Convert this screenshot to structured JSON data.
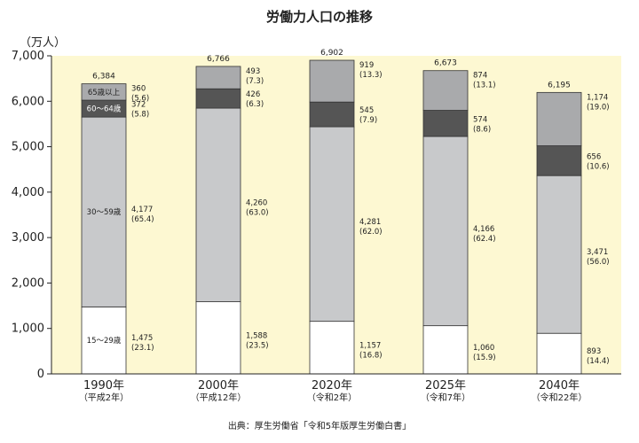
{
  "chart_data": {
    "type": "bar",
    "stacked": true,
    "title": "労働力人口の推移",
    "ylabel": "（万人）",
    "ylim": [
      0,
      7000
    ],
    "yticks": [
      "0",
      "1,000",
      "2,000",
      "3,000",
      "4,000",
      "5,000",
      "6,000",
      "7,000"
    ],
    "grid": false,
    "background": "#fdf8d2",
    "categories": [
      {
        "year": "1990年",
        "era": "（平成2年）"
      },
      {
        "year": "2000年",
        "era": "（平成12年）"
      },
      {
        "year": "2020年",
        "era": "（令和2年）"
      },
      {
        "year": "2025年",
        "era": "（令和7年）"
      },
      {
        "year": "2040年",
        "era": "（令和22年）"
      }
    ],
    "totals": [
      "6,384",
      "6,766",
      "6,902",
      "6,673",
      "6,195"
    ],
    "series": [
      {
        "name": "15～29歳",
        "color": "#ffffff",
        "values": [
          1475,
          1588,
          1157,
          1060,
          893
        ],
        "value_labels": [
          "1,475",
          "1,588",
          "1,157",
          "1,060",
          "893"
        ],
        "shares": [
          "(23.1)",
          "(23.5)",
          "(16.8)",
          "(15.9)",
          "(14.4)"
        ]
      },
      {
        "name": "30～59歳",
        "color": "#c8c9cb",
        "values": [
          4177,
          4260,
          4281,
          4166,
          3471
        ],
        "value_labels": [
          "4,177",
          "4,260",
          "4,281",
          "4,166",
          "3,471"
        ],
        "shares": [
          "(65.4)",
          "(63.0)",
          "(62.0)",
          "(62.4)",
          "(56.0)"
        ]
      },
      {
        "name": "60～64歳",
        "color": "#555555",
        "values": [
          372,
          426,
          545,
          574,
          656
        ],
        "value_labels": [
          "372",
          "426",
          "545",
          "574",
          "656"
        ],
        "shares": [
          "(5.8)",
          "(6.3)",
          "(7.9)",
          "(8.6)",
          "(10.6)"
        ]
      },
      {
        "name": "65歳以上",
        "color": "#a9aaac",
        "values": [
          360,
          493,
          919,
          874,
          1174
        ],
        "value_labels": [
          "360",
          "493",
          "919",
          "874",
          "1,174"
        ],
        "shares": [
          "(5.6)",
          "(7.3)",
          "(13.3)",
          "(13.1)",
          "(19.0)"
        ]
      }
    ],
    "source": "出典：厚生労働省「令和5年版厚生労働白書」"
  }
}
